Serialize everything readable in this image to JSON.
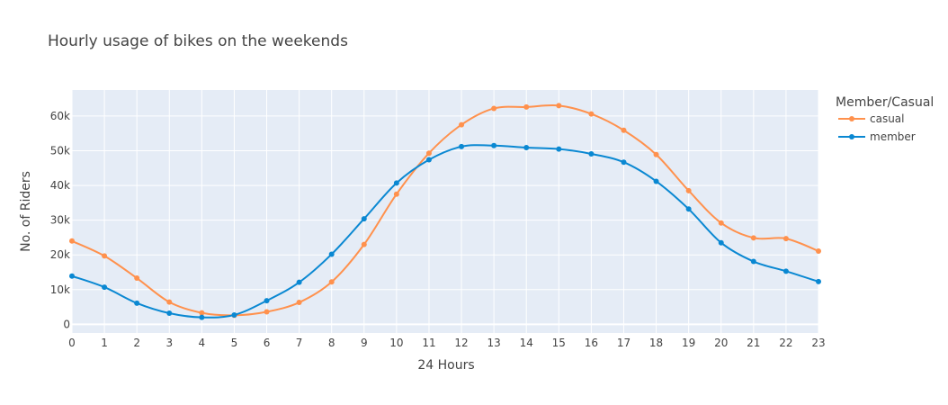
{
  "chart_data": {
    "type": "line",
    "title": "Hourly usage of bikes on the weekends",
    "xlabel": "24 Hours",
    "ylabel": "No. of Riders",
    "x": [
      0,
      1,
      2,
      3,
      4,
      5,
      6,
      7,
      8,
      9,
      10,
      11,
      12,
      13,
      14,
      15,
      16,
      17,
      18,
      19,
      20,
      21,
      22,
      23
    ],
    "x_tick_labels": [
      "0",
      "1",
      "2",
      "3",
      "4",
      "5",
      "6",
      "7",
      "8",
      "9",
      "10",
      "11",
      "12",
      "13",
      "14",
      "15",
      "16",
      "17",
      "18",
      "19",
      "20",
      "21",
      "22",
      "23"
    ],
    "xlim": [
      0,
      23
    ],
    "ylim": [
      -2500,
      67500
    ],
    "y_ticks": [
      0,
      10000,
      20000,
      30000,
      40000,
      50000,
      60000
    ],
    "y_tick_labels": [
      "0",
      "10k",
      "20k",
      "30k",
      "40k",
      "50k",
      "60k"
    ],
    "grid": true,
    "background": "#E5ECF6",
    "legend": {
      "title": "Member/Casual",
      "placement": "right"
    },
    "series": [
      {
        "name": "casual",
        "color": "#FF914D",
        "values": [
          24000,
          19700,
          13300,
          6400,
          3300,
          2600,
          3600,
          6300,
          12200,
          23000,
          37500,
          49300,
          57500,
          62200,
          62600,
          63000,
          60600,
          55900,
          48900,
          38500,
          29200,
          24900,
          24700,
          21100
        ]
      },
      {
        "name": "member",
        "color": "#0A88D2",
        "values": [
          13900,
          10700,
          6100,
          3200,
          2000,
          2700,
          6800,
          12100,
          20200,
          30400,
          40700,
          47400,
          51200,
          51500,
          50900,
          50500,
          49100,
          46700,
          41200,
          33200,
          23500,
          18100,
          15300,
          12300
        ]
      }
    ]
  }
}
